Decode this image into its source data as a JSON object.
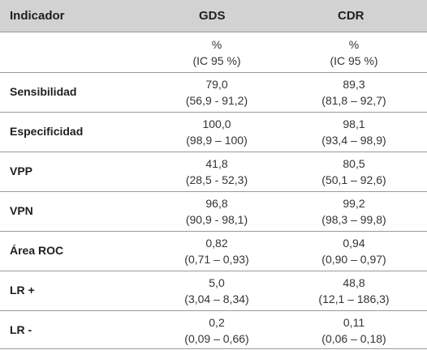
{
  "header": {
    "indicator": "Indicador",
    "gds": "GDS",
    "cdr": "CDR"
  },
  "rows": [
    {
      "label": "",
      "gds": {
        "line1": "%",
        "line2": "(IC 95 %)"
      },
      "cdr": {
        "line1": "%",
        "line2": "(IC 95 %)"
      }
    },
    {
      "label": "Sensibilidad",
      "gds": {
        "line1": "79,0",
        "line2": "(56,9 - 91,2)"
      },
      "cdr": {
        "line1": "89,3",
        "line2": "(81,8 – 92,7)"
      }
    },
    {
      "label": "Especificidad",
      "gds": {
        "line1": "100,0",
        "line2": "(98,9 – 100)"
      },
      "cdr": {
        "line1": "98,1",
        "line2": "(93,4 – 98,9)"
      }
    },
    {
      "label": "VPP",
      "gds": {
        "line1": "41,8",
        "line2": "(28,5 - 52,3)"
      },
      "cdr": {
        "line1": "80,5",
        "line2": "(50,1 – 92,6)"
      }
    },
    {
      "label": "VPN",
      "gds": {
        "line1": "96,8",
        "line2": "(90,9 - 98,1)"
      },
      "cdr": {
        "line1": "99,2",
        "line2": "(98,3 – 99,8)"
      }
    },
    {
      "label": "Área ROC",
      "gds": {
        "line1": "0,82",
        "line2": "(0,71 – 0,93)"
      },
      "cdr": {
        "line1": "0,94",
        "line2": "(0,90 – 0,97)"
      }
    },
    {
      "label": "LR +",
      "gds": {
        "line1": "5,0",
        "line2": "(3,04 – 8,34)"
      },
      "cdr": {
        "line1": "48,8",
        "line2": "(12,1 – 186,3)"
      }
    },
    {
      "label": "LR -",
      "gds": {
        "line1": "0,2",
        "line2": "(0,09 – 0,66)"
      },
      "cdr": {
        "line1": "0,11",
        "line2": "(0,06 – 0,18)"
      }
    }
  ]
}
